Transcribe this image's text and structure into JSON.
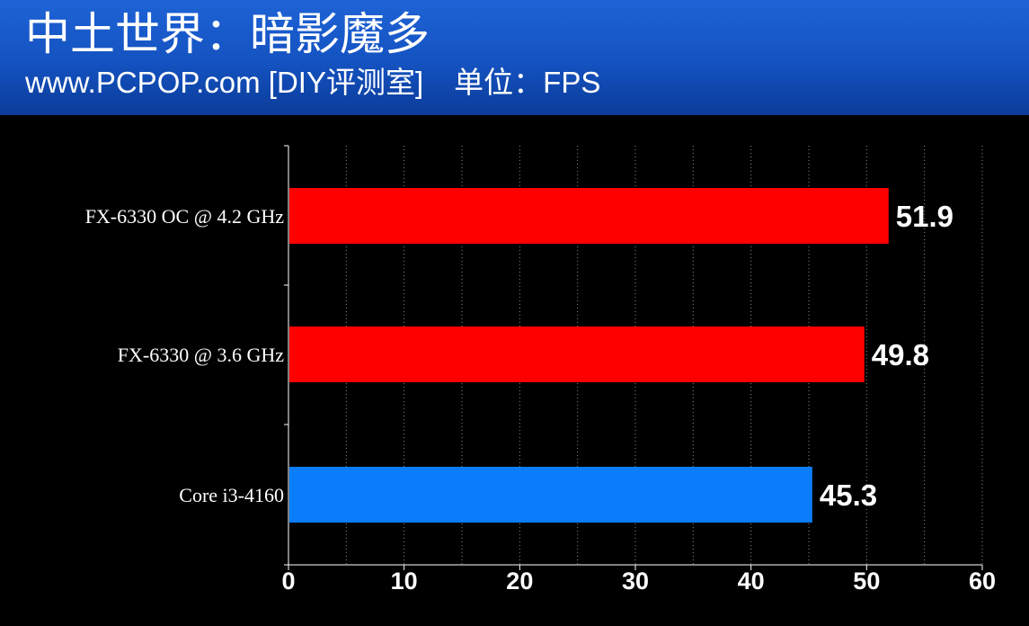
{
  "header": {
    "title": "中土世界：暗影魔多",
    "subtitle_site": "www.PCPOP.com [DIY评测室]",
    "subtitle_unit": "单位：FPS"
  },
  "chart_data": {
    "type": "bar",
    "orientation": "horizontal",
    "categories": [
      "FX-6330 OC @ 4.2 GHz",
      "FX-6330 @ 3.6 GHz",
      "Core i3-4160"
    ],
    "values": [
      51.9,
      49.8,
      45.3
    ],
    "value_labels": [
      "51.9",
      "49.8",
      "45.3"
    ],
    "bar_colors": [
      "#ff0000",
      "#ff0000",
      "#0a7dfb"
    ],
    "xlim": [
      0,
      60
    ],
    "xticks": [
      0,
      10,
      20,
      30,
      40,
      50,
      60
    ],
    "xtick_labels": [
      "0",
      "10",
      "20",
      "30",
      "40",
      "50",
      "60"
    ],
    "grid": "vertical dotted",
    "background": "#000000"
  }
}
